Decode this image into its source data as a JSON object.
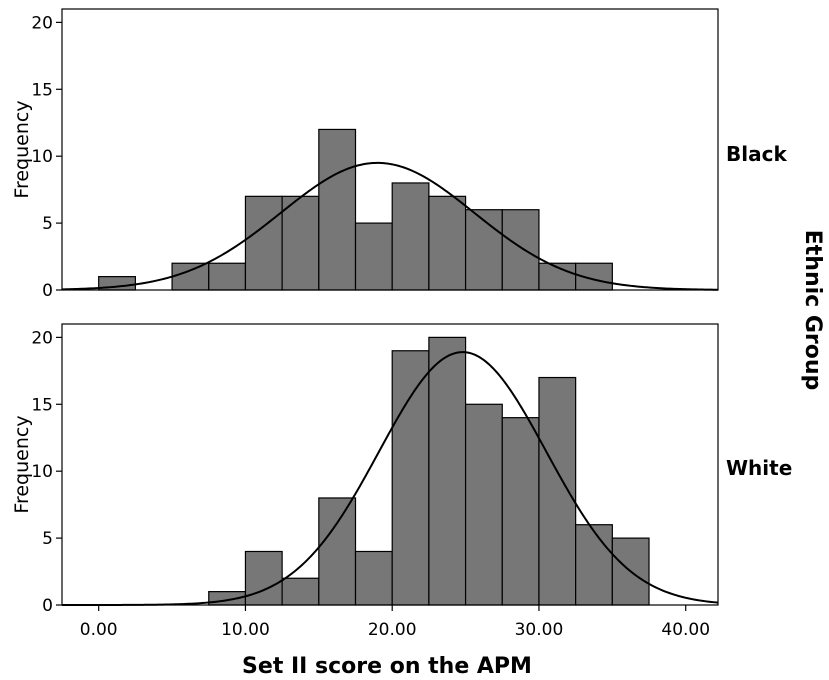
{
  "chart_data": [
    {
      "type": "bar",
      "panel_label": "Black",
      "ylabel": "Frequency",
      "ylim": [
        0,
        21
      ],
      "y_ticks": [
        0,
        5,
        10,
        15,
        20
      ],
      "xlim": [
        -2.5,
        42.2
      ],
      "bin_width": 2.5,
      "bins": [
        {
          "x0": 0.0,
          "x1": 2.5,
          "count": 1
        },
        {
          "x0": 5.0,
          "x1": 7.5,
          "count": 2
        },
        {
          "x0": 7.5,
          "x1": 10.0,
          "count": 2
        },
        {
          "x0": 10.0,
          "x1": 12.5,
          "count": 7
        },
        {
          "x0": 12.5,
          "x1": 15.0,
          "count": 7
        },
        {
          "x0": 15.0,
          "x1": 17.5,
          "count": 12
        },
        {
          "x0": 17.5,
          "x1": 20.0,
          "count": 5
        },
        {
          "x0": 20.0,
          "x1": 22.5,
          "count": 8
        },
        {
          "x0": 22.5,
          "x1": 25.0,
          "count": 7
        },
        {
          "x0": 25.0,
          "x1": 27.5,
          "count": 6
        },
        {
          "x0": 27.5,
          "x1": 30.0,
          "count": 6
        },
        {
          "x0": 30.0,
          "x1": 32.5,
          "count": 2
        },
        {
          "x0": 32.5,
          "x1": 35.0,
          "count": 2
        }
      ],
      "normal_curve": {
        "mean": 19.0,
        "sd": 6.6,
        "peak": 9.5
      }
    },
    {
      "type": "bar",
      "panel_label": "White",
      "ylabel": "Frequency",
      "ylim": [
        0,
        21
      ],
      "y_ticks": [
        0,
        5,
        10,
        15,
        20
      ],
      "xlim": [
        -2.5,
        42.2
      ],
      "x_ticks": [
        0,
        10,
        20,
        30,
        40
      ],
      "x_tick_labels": [
        "0.00",
        "10.00",
        "20.00",
        "30.00",
        "40.00"
      ],
      "bin_width": 2.5,
      "bins": [
        {
          "x0": 7.5,
          "x1": 10.0,
          "count": 1
        },
        {
          "x0": 10.0,
          "x1": 12.5,
          "count": 4
        },
        {
          "x0": 12.5,
          "x1": 15.0,
          "count": 2
        },
        {
          "x0": 15.0,
          "x1": 17.5,
          "count": 8
        },
        {
          "x0": 17.5,
          "x1": 20.0,
          "count": 4
        },
        {
          "x0": 20.0,
          "x1": 22.5,
          "count": 19
        },
        {
          "x0": 22.5,
          "x1": 25.0,
          "count": 20
        },
        {
          "x0": 25.0,
          "x1": 27.5,
          "count": 15
        },
        {
          "x0": 27.5,
          "x1": 30.0,
          "count": 14
        },
        {
          "x0": 30.0,
          "x1": 32.5,
          "count": 17
        },
        {
          "x0": 32.5,
          "x1": 35.0,
          "count": 6
        },
        {
          "x0": 35.0,
          "x1": 37.5,
          "count": 5
        }
      ],
      "normal_curve": {
        "mean": 24.8,
        "sd": 5.7,
        "peak": 18.9
      }
    }
  ],
  "xlabel": "Set II score on the APM",
  "facet_label": "Ethnic Group",
  "colors": {
    "bar_fill": "#777777",
    "bar_stroke": "#000000",
    "curve": "#000000"
  }
}
